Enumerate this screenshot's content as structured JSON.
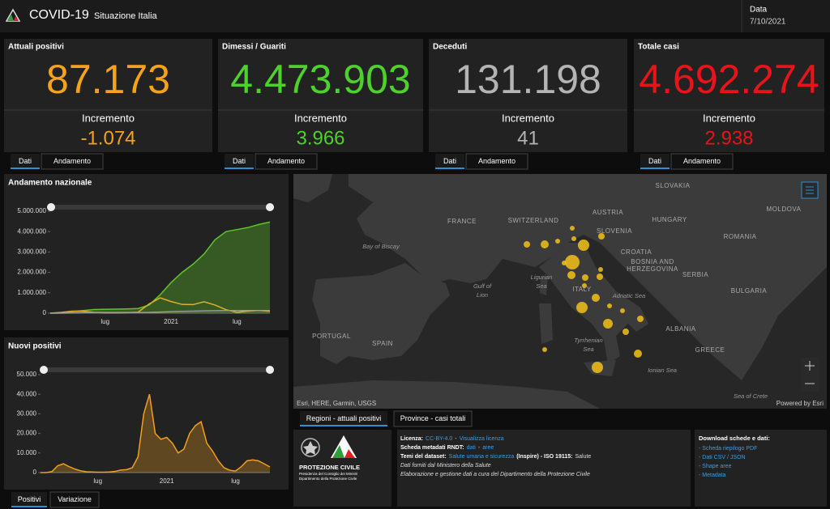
{
  "header": {
    "title": "COVID-19",
    "subtitle": "Situazione Italia",
    "date_label": "Data",
    "date": "7/10/2021"
  },
  "cards": [
    {
      "title": "Attuali positivi",
      "value": "87.173",
      "increment_label": "Incremento",
      "increment": "-1.074",
      "color": "#f7a21b",
      "tabs": [
        "Dati",
        "Andamento"
      ]
    },
    {
      "title": "Dimessi / Guariti",
      "value": "4.473.903",
      "increment_label": "Incremento",
      "increment": "3.966",
      "color": "#4fd12b",
      "tabs": [
        "Dati",
        "Andamento"
      ]
    },
    {
      "title": "Deceduti",
      "value": "131.198",
      "increment_label": "Incremento",
      "increment": "41",
      "color": "#b4b4b4",
      "tabs": [
        "Dati",
        "Andamento"
      ]
    },
    {
      "title": "Totale casi",
      "value": "4.692.274",
      "increment_label": "Incremento",
      "increment": "2.938",
      "color": "#e8141a",
      "tabs": [
        "Dati",
        "Andamento"
      ]
    }
  ],
  "chart_data": [
    {
      "type": "line",
      "title": "Andamento nazionale",
      "categories": [
        null,
        null,
        null,
        null,
        null,
        "lug",
        null,
        null,
        null,
        null,
        null,
        "2021",
        null,
        null,
        null,
        null,
        null,
        "lug",
        null,
        null,
        null
      ],
      "series": [
        {
          "color": "#5fc42a",
          "values": [
            0,
            10000,
            75000,
            130000,
            180000,
            190000,
            200000,
            210000,
            230000,
            400000,
            900000,
            1500000,
            2000000,
            2400000,
            2900000,
            3600000,
            4000000,
            4100000,
            4200000,
            4350000,
            4470000
          ]
        },
        {
          "color": "#e0b020",
          "values": [
            0,
            40000,
            100000,
            100000,
            40000,
            15000,
            13000,
            25000,
            50000,
            450000,
            750000,
            570000,
            430000,
            420000,
            560000,
            400000,
            170000,
            40000,
            100000,
            130000,
            87000
          ]
        },
        {
          "color": "#9a9a9a",
          "values": [
            0,
            1000,
            12000,
            28000,
            33000,
            34000,
            35000,
            35000,
            36000,
            38000,
            56000,
            75000,
            89000,
            97000,
            110000,
            121000,
            126000,
            127000,
            128000,
            130000,
            131000
          ]
        }
      ],
      "ylim": [
        0,
        5000000
      ],
      "yticks": [
        0,
        {
          "value": 1000000,
          "label": "1.000.000"
        },
        {
          "value": 2000000,
          "label": "2.000.000"
        },
        {
          "value": 3000000,
          "label": "3.000.000"
        },
        {
          "value": 4000000,
          "label": "4.000.000"
        },
        {
          "value": 5000000,
          "label": "5.000.000"
        }
      ]
    },
    {
      "type": "area",
      "title": "Nuovi positivi",
      "color": "#f0a020",
      "categories": [
        null,
        null,
        null,
        null,
        null,
        null,
        null,
        null,
        null,
        null,
        "lug",
        null,
        null,
        null,
        null,
        null,
        null,
        null,
        null,
        null,
        null,
        null,
        "2021",
        null,
        null,
        null,
        null,
        null,
        null,
        null,
        null,
        null,
        null,
        null,
        "lug",
        null,
        null,
        null,
        null,
        null,
        null
      ],
      "values": [
        0,
        0,
        500,
        3500,
        4500,
        3000,
        1800,
        900,
        400,
        300,
        200,
        200,
        300,
        600,
        1300,
        1500,
        2500,
        8000,
        30000,
        40000,
        20000,
        17000,
        18000,
        15000,
        10000,
        12000,
        20000,
        24000,
        26000,
        15000,
        11000,
        6000,
        2500,
        1200,
        800,
        3000,
        6000,
        6500,
        6000,
        4500,
        2900
      ],
      "ylim": [
        0,
        50000
      ],
      "yticks": [
        0,
        {
          "value": 10000,
          "label": "10.000"
        },
        {
          "value": 20000,
          "label": "20.000"
        },
        {
          "value": 30000,
          "label": "30.000"
        },
        {
          "value": 40000,
          "label": "40.000"
        },
        {
          "value": 50000,
          "label": "50.000"
        }
      ],
      "tabs": [
        "Positivi",
        "Variazione"
      ]
    }
  ],
  "map": {
    "labels": [
      "FRANCE",
      "SWITZERLAND",
      "AUSTRIA",
      "SLOVAKIA",
      "HUNGARY",
      "MOLDOVA",
      "ROMANIA",
      "SLOVENIA",
      "CROATIA",
      "BOSNIA AND",
      "HERZEGOVINA",
      "SERBIA",
      "BULGARIA",
      "ITALY",
      "ALBANIA",
      "GREECE",
      "PORTUGAL",
      "SPAIN",
      "Bay of Biscay",
      "Gulf of",
      "Lion",
      "Ligurian",
      "Sea",
      "Adriatic Sea",
      "Tyrrhenian",
      "Sea",
      "Ionian Sea",
      "Sea of Crete"
    ],
    "attribution": "Esri, HERE, Garmin, USGS",
    "powered": "Powered by Esri",
    "tabs": [
      "Regioni - attuali positivi",
      "Province - casi totali"
    ]
  },
  "footer": {
    "logo": [
      "PROTEZIONE CIVILE",
      "Presidenza del Consiglio dei Ministri",
      "Dipartimento della Protezione Civile"
    ],
    "info": [
      [
        "Licenza:",
        "CC-BY-4.0",
        "-",
        "Visualizza licenza"
      ],
      [
        "Scheda metadati RNDT:",
        "dati",
        "-",
        "aree"
      ],
      [
        "Temi del dataset:",
        "Salute umana e sicurezza",
        "(Inspire) - ISO 19115:",
        "Salute"
      ],
      [
        "Dati forniti dal Ministero della Salute"
      ],
      [
        "Elaborazione e gestione dati a cura del Dipartimento della Protezione Civile"
      ]
    ],
    "downloads_title": "Download schede e dati:",
    "downloads": [
      "- Scheda riepilogo PDF",
      "- Dati CSV / JSON",
      "- Shape aree",
      "- Metadata"
    ]
  }
}
